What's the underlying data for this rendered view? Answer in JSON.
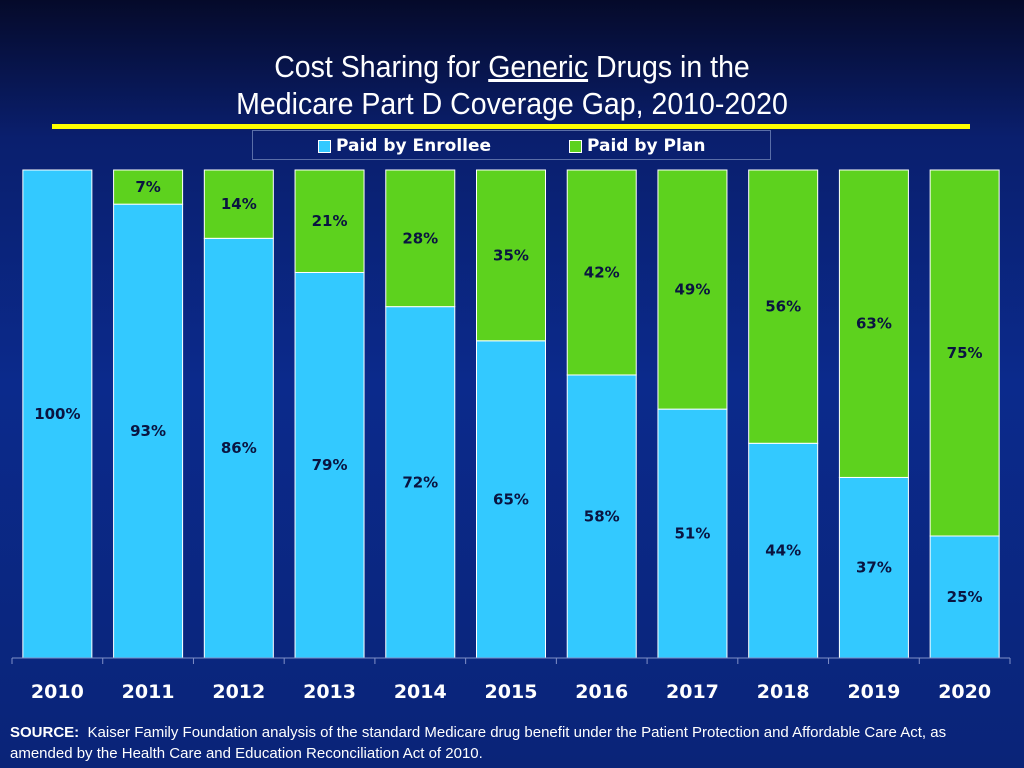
{
  "title": {
    "line1_prefix": "Cost Sharing for",
    "line1_underlined": "Generic",
    "line1_suffix": "Drugs in the",
    "line2": "Medicare Part D Coverage Gap, 2010-2020"
  },
  "colors": {
    "enrollee": "#33c9ff",
    "plan": "#5dd21e",
    "rule": "#ffff00",
    "text": "#ffffff",
    "label": "#0a1440"
  },
  "chart_data": {
    "type": "bar",
    "stacked": true,
    "normalized": true,
    "categories": [
      "2010",
      "2011",
      "2012",
      "2013",
      "2014",
      "2015",
      "2016",
      "2017",
      "2018",
      "2019",
      "2020"
    ],
    "series": [
      {
        "name": "Paid by Enrollee",
        "values": [
          100,
          93,
          86,
          79,
          72,
          65,
          58,
          51,
          44,
          37,
          25
        ],
        "labels": [
          "100%",
          "93%",
          "86%",
          "79%",
          "72%",
          "65%",
          "58%",
          "51%",
          "44%",
          "37%",
          "25%"
        ]
      },
      {
        "name": "Paid by Plan",
        "values": [
          0,
          7,
          14,
          21,
          28,
          35,
          42,
          49,
          56,
          63,
          75
        ],
        "labels": [
          "",
          "7%",
          "14%",
          "21%",
          "28%",
          "35%",
          "42%",
          "49%",
          "56%",
          "63%",
          "75%"
        ]
      }
    ],
    "ylim": [
      0,
      100
    ],
    "legend_position": "top",
    "grid": false
  },
  "source": {
    "label": "SOURCE:",
    "text": "Kaiser Family Foundation analysis of the standard Medicare drug benefit under the Patient Protection and Affordable Care Act, as amended by the Health Care and Education Reconciliation Act of 2010."
  }
}
